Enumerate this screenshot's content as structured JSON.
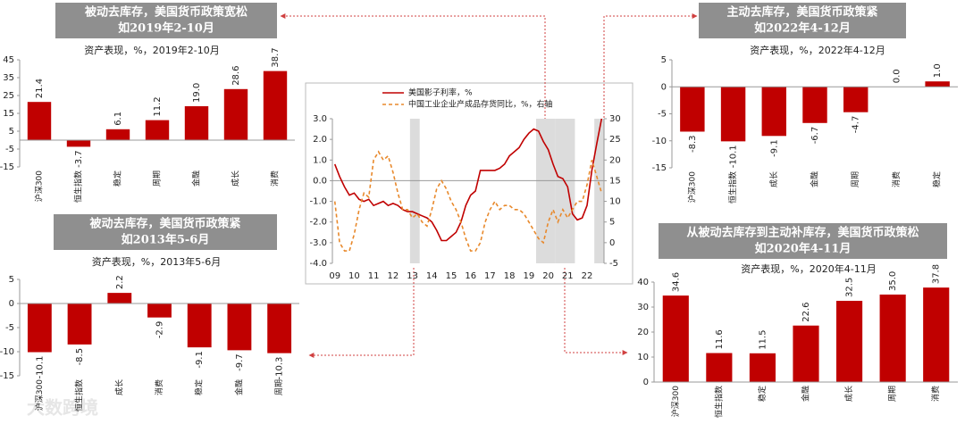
{
  "chart_data": [
    {
      "type": "bar",
      "banner": [
        "被动去库存，美国货币政策宽松",
        "如2019年2-10月"
      ],
      "subtitle": "资产表现，%，2019年2-10月",
      "categories": [
        "沪深300",
        "恒生指数",
        "稳定",
        "周期",
        "金融",
        "成长",
        "消费"
      ],
      "values": [
        21.4,
        -3.7,
        6.1,
        11.2,
        19.0,
        28.6,
        38.7
      ],
      "value_labels": [
        "21.4",
        "-3.7",
        "6.1",
        "11.2",
        "19.0",
        "28.6",
        "38.7"
      ],
      "color": "#c00000",
      "ylim": [
        -15,
        45
      ],
      "yticks": [
        -15,
        -5,
        5,
        15,
        25,
        35,
        45
      ]
    },
    {
      "type": "bar",
      "banner": [
        "主动去库存，美国货币政策紧",
        "如2022年4-12月"
      ],
      "subtitle": "资产表现，%，2022年4-12月",
      "categories": [
        "沪深300",
        "恒生指数",
        "成长",
        "金融",
        "周期",
        "消费",
        "稳定"
      ],
      "values": [
        -8.3,
        -10.1,
        -9.1,
        -6.7,
        -4.7,
        0.0,
        1.0
      ],
      "value_labels": [
        "-8.3",
        "-10.1",
        "-9.1",
        "-6.7",
        "-4.7",
        "0.0",
        "1.0"
      ],
      "color": "#c00000",
      "ylim": [
        -15,
        5
      ],
      "yticks": [
        -15,
        -10,
        -5,
        0,
        5
      ]
    },
    {
      "type": "bar",
      "banner": [
        "被动去库存，美国货币政策紧",
        "如2013年5-6月"
      ],
      "subtitle": "资产表现，%，2013年5-6月",
      "categories": [
        "沪深300",
        "恒生指数",
        "成长",
        "消费",
        "稳定",
        "金融",
        "周期"
      ],
      "values": [
        -10.1,
        -8.5,
        2.2,
        -2.9,
        -9.1,
        -9.7,
        -10.3
      ],
      "value_labels": [
        "-10.1",
        "-8.5",
        "2.2",
        "-2.9",
        "-9.1",
        "-9.7",
        "-10.3"
      ],
      "color": "#c00000",
      "ylim": [
        -15,
        5
      ],
      "yticks": [
        -15,
        -10,
        -5,
        0,
        5
      ]
    },
    {
      "type": "bar",
      "banner": [
        "从被动去库存到主动补库存，美国货币政策松",
        "如2020年4-11月"
      ],
      "subtitle": "资产表现，%，2020年4-11月",
      "categories": [
        "沪深300",
        "恒生指数",
        "稳定",
        "金融",
        "成长",
        "周期",
        "消费"
      ],
      "values": [
        34.6,
        11.6,
        11.5,
        22.6,
        32.5,
        35.0,
        37.8
      ],
      "value_labels": [
        "34.6",
        "11.6",
        "11.5",
        "22.6",
        "32.5",
        "35.0",
        "37.8"
      ],
      "color": "#c00000",
      "ylim": [
        0,
        40
      ],
      "yticks": [
        0,
        10,
        20,
        30,
        40
      ]
    },
    {
      "type": "line",
      "categories": [
        "09",
        null,
        null,
        null,
        "10",
        null,
        null,
        null,
        "11",
        null,
        null,
        null,
        "12",
        null,
        null,
        null,
        "13",
        null,
        null,
        null,
        "14",
        null,
        null,
        null,
        "15",
        null,
        null,
        null,
        "16",
        null,
        null,
        null,
        "17",
        null,
        null,
        null,
        "18",
        null,
        null,
        null,
        "19",
        null,
        null,
        null,
        "20",
        null,
        null,
        null,
        "21",
        null,
        null,
        null,
        "22",
        null,
        null,
        null
      ],
      "series": [
        {
          "name": "美国影子利率，%",
          "color": "#c00000",
          "dashed": false,
          "values": [
            0.8,
            0.2,
            -0.3,
            -0.7,
            -0.6,
            -0.9,
            -1.0,
            -0.9,
            -1.2,
            -1.1,
            -1.0,
            -1.2,
            -1.1,
            -1.2,
            -1.4,
            -1.5,
            -1.5,
            -1.6,
            -1.7,
            -1.8,
            -2.0,
            -2.4,
            -2.9,
            -2.9,
            -2.7,
            -2.5,
            -2.0,
            -1.2,
            -0.7,
            -0.5,
            0.5,
            0.5,
            0.5,
            0.5,
            0.6,
            0.8,
            1.2,
            1.4,
            1.6,
            2.0,
            2.3,
            2.5,
            2.4,
            1.9,
            1.5,
            0.8,
            0.2,
            0.1,
            -0.3,
            -1.6,
            -1.9,
            -1.8,
            -1.2,
            0.5,
            1.8,
            3.0
          ]
        },
        {
          "name": "中国工业企业产成品存货同比，%，右轴",
          "color": "#e8892c",
          "dashed": true,
          "axis": "y2",
          "values": [
            10,
            0,
            -2,
            -2,
            2,
            8,
            12,
            11,
            20,
            22,
            20,
            21,
            17,
            12,
            8,
            8,
            6,
            7,
            5,
            4,
            8,
            13,
            15,
            13,
            10,
            8,
            5,
            1,
            -2,
            -2,
            0,
            5,
            8,
            10,
            8,
            9,
            9,
            8,
            8,
            7,
            5,
            3,
            1,
            0,
            5,
            8,
            5,
            8,
            6,
            8,
            10,
            10,
            14,
            20,
            16,
            12
          ]
        }
      ],
      "ylim": [
        -4,
        3
      ],
      "yticks": [
        {
          "value": -4,
          "label": "-4.0"
        },
        {
          "value": -3,
          "label": "-3.0"
        },
        {
          "value": -2,
          "label": "-2.0"
        },
        {
          "value": -1,
          "label": "-1.0"
        },
        {
          "value": 0,
          "label": "0.0"
        },
        {
          "value": 1,
          "label": "1.0"
        },
        {
          "value": 2,
          "label": "2.0"
        },
        {
          "value": 3,
          "label": "3.0"
        }
      ],
      "y2lim": [
        -5,
        30
      ],
      "y2ticks": [
        -5,
        0,
        5,
        10,
        15,
        20,
        25,
        30
      ],
      "shaded": [
        [
          16,
          17
        ],
        [
          42,
          45
        ],
        [
          46,
          49
        ],
        [
          54,
          55
        ]
      ],
      "shade_color": "#dcdcdc"
    }
  ],
  "watermark": "大数跨境"
}
